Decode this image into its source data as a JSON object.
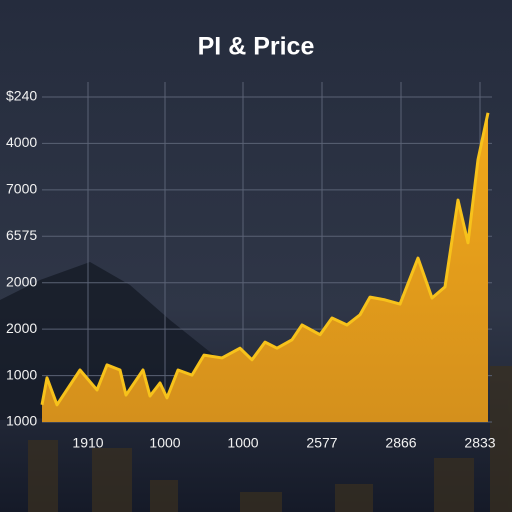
{
  "chart_data": {
    "type": "area",
    "title": "PI & Price",
    "x": [
      0,
      0.5,
      1.5,
      3.8,
      5.5,
      6.5,
      7.8,
      8.4,
      10.1,
      10.8,
      11.8,
      12.5,
      13.6,
      15,
      16.2,
      18,
      19.8,
      21,
      22.3,
      23.5,
      25,
      26,
      27.8,
      29,
      30.5,
      31.8,
      32.8,
      34.3,
      35.8,
      37.6,
      39,
      40.3,
      41.6,
      42.6,
      43.6,
      44.6
    ],
    "values": [
      0.37,
      0.95,
      0.37,
      1.12,
      0.69,
      1.23,
      1.12,
      0.58,
      1.12,
      0.56,
      0.84,
      0.52,
      1.12,
      1.01,
      1.44,
      1.38,
      1.59,
      1.34,
      1.72,
      1.59,
      1.77,
      2.09,
      1.88,
      2.24,
      2.09,
      2.31,
      2.69,
      2.63,
      2.54,
      3.53,
      2.67,
      2.91,
      4.78,
      3.86,
      5.65,
      6.66
    ],
    "color": "#f7c21b",
    "xlim": [
      0,
      45
    ],
    "ylim": [
      0,
      7
    ],
    "xticks": [
      {
        "value": 4.6,
        "label": "1910"
      },
      {
        "value": 12.3,
        "label": "1000"
      },
      {
        "value": 20.1,
        "label": "1000"
      },
      {
        "value": 28,
        "label": "2577"
      },
      {
        "value": 35.9,
        "label": "2866"
      },
      {
        "value": 43.8,
        "label": "2833"
      }
    ],
    "yticks": [
      {
        "value": 0,
        "label": "1000"
      },
      {
        "value": 1,
        "label": "1000"
      },
      {
        "value": 2,
        "label": "2000"
      },
      {
        "value": 3,
        "label": "2000"
      },
      {
        "value": 4,
        "label": "6575"
      },
      {
        "value": 5,
        "label": "7000"
      },
      {
        "value": 6,
        "label": "4000"
      },
      {
        "value": 7,
        "label": "$240"
      }
    ],
    "grid": true
  }
}
